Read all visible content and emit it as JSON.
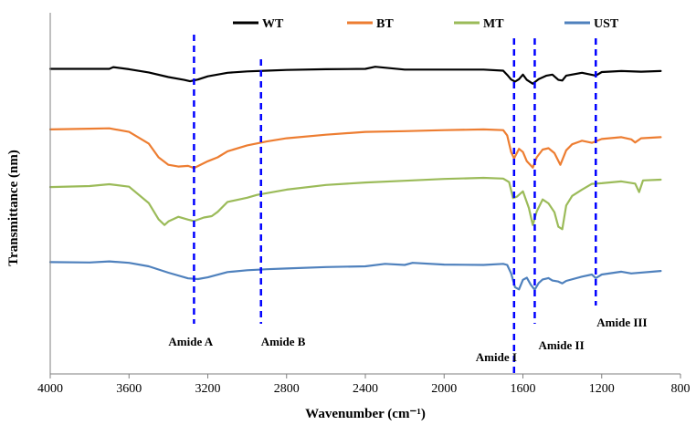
{
  "chart_data": {
    "type": "line",
    "xlabel": "Wavenumber (cm⁻¹)",
    "ylabel": "Transmittance (nm)",
    "xlim": [
      4000,
      800
    ],
    "x_reversed": true,
    "x_ticks": [
      4000,
      3600,
      3200,
      2800,
      2400,
      2000,
      1600,
      1200,
      800
    ],
    "y_ticks_shown": false,
    "ylim": [
      0,
      100
    ],
    "grid": false,
    "legend_position": "top",
    "series": [
      {
        "name": "WT",
        "color": "#000000",
        "x": [
          4000,
          3700,
          3680,
          3600,
          3500,
          3400,
          3320,
          3290,
          3250,
          3200,
          3100,
          3000,
          2900,
          2800,
          2600,
          2400,
          2350,
          2200,
          2000,
          1800,
          1700,
          1680,
          1660,
          1640,
          1620,
          1600,
          1580,
          1550,
          1520,
          1480,
          1450,
          1420,
          1400,
          1380,
          1300,
          1230,
          1200,
          1100,
          1000,
          900
        ],
        "values": [
          86.2,
          86.2,
          86.7,
          86.1,
          85.2,
          83.9,
          83.1,
          82.7,
          83.2,
          84.1,
          85.1,
          85.5,
          85.7,
          85.9,
          86.1,
          86.2,
          86.8,
          86.0,
          86.0,
          86.0,
          85.7,
          84.5,
          83.2,
          82.6,
          83.3,
          84.6,
          83.1,
          82.0,
          83.3,
          84.3,
          84.6,
          83.1,
          82.9,
          84.3,
          85.1,
          84.3,
          85.3,
          85.6,
          85.4,
          85.6
        ]
      },
      {
        "name": "BT",
        "color": "#ED7D31",
        "x": [
          4000,
          3800,
          3700,
          3600,
          3500,
          3450,
          3400,
          3350,
          3300,
          3270,
          3200,
          3150,
          3100,
          3000,
          2900,
          2800,
          2600,
          2400,
          2200,
          2000,
          1800,
          1700,
          1680,
          1660,
          1645,
          1620,
          1600,
          1580,
          1550,
          1530,
          1500,
          1470,
          1440,
          1410,
          1380,
          1350,
          1300,
          1250,
          1200,
          1100,
          1050,
          1030,
          1000,
          900
        ],
        "values": [
          69.1,
          69.3,
          69.4,
          68.4,
          65.1,
          61.2,
          59.1,
          58.6,
          58.8,
          58.2,
          60.1,
          61.2,
          62.9,
          64.6,
          65.7,
          66.6,
          67.6,
          68.4,
          68.6,
          68.9,
          69.1,
          68.9,
          67.4,
          62.7,
          60.9,
          63.6,
          62.7,
          60.1,
          58.3,
          61.2,
          63.4,
          63.8,
          62.4,
          59.1,
          63.2,
          64.9,
          65.9,
          65.3,
          66.4,
          66.9,
          66.3,
          65.4,
          66.6,
          66.9
        ]
      },
      {
        "name": "MT",
        "color": "#9BBB59",
        "x": [
          4000,
          3800,
          3700,
          3600,
          3500,
          3450,
          3420,
          3400,
          3350,
          3300,
          3270,
          3220,
          3180,
          3150,
          3100,
          3000,
          2950,
          2800,
          2600,
          2400,
          2200,
          2000,
          1800,
          1700,
          1670,
          1650,
          1630,
          1600,
          1570,
          1550,
          1530,
          1500,
          1470,
          1440,
          1420,
          1400,
          1380,
          1350,
          1300,
          1250,
          1200,
          1100,
          1030,
          1010,
          990,
          900
        ],
        "values": [
          52.8,
          53.1,
          53.6,
          52.9,
          48.3,
          43.7,
          42.1,
          43.1,
          44.4,
          43.6,
          43.2,
          44.2,
          44.6,
          45.8,
          48.6,
          49.8,
          50.6,
          52.1,
          53.4,
          54.1,
          54.6,
          55.1,
          55.4,
          55.2,
          54.2,
          49.7,
          50.1,
          51.6,
          46.9,
          42.1,
          45.9,
          49.3,
          48.2,
          45.7,
          41.6,
          40.9,
          47.6,
          50.3,
          52.1,
          53.7,
          53.9,
          54.4,
          53.8,
          51.4,
          54.7,
          54.9
        ]
      },
      {
        "name": "UST",
        "color": "#4F81BD",
        "x": [
          4000,
          3800,
          3700,
          3600,
          3500,
          3400,
          3300,
          3250,
          3200,
          3100,
          3000,
          2900,
          2800,
          2600,
          2400,
          2300,
          2200,
          2160,
          2000,
          1800,
          1700,
          1680,
          1660,
          1640,
          1620,
          1600,
          1580,
          1560,
          1540,
          1520,
          1500,
          1470,
          1450,
          1420,
          1400,
          1380,
          1300,
          1250,
          1230,
          1200,
          1100,
          1050,
          900
        ],
        "values": [
          31.6,
          31.5,
          31.8,
          31.4,
          30.4,
          28.6,
          27.0,
          26.8,
          27.3,
          28.8,
          29.3,
          29.6,
          29.8,
          30.2,
          30.4,
          31.1,
          30.8,
          31.4,
          30.9,
          30.8,
          31.1,
          30.8,
          28.4,
          24.5,
          23.9,
          26.6,
          27.2,
          25.2,
          23.8,
          25.7,
          26.7,
          27.1,
          26.4,
          26.1,
          25.6,
          26.3,
          27.5,
          28.1,
          27.1,
          28.1,
          28.9,
          28.4,
          29.1
        ]
      }
    ],
    "reference_lines": [
      {
        "label": "Amide A",
        "x": 3270
      },
      {
        "label": "Amide B",
        "x": 2930
      },
      {
        "label": "Amide I",
        "x": 1645
      },
      {
        "label": "Amide II",
        "x": 1540
      },
      {
        "label": "Amide III",
        "x": 1230
      }
    ],
    "reference_line_color": "#0000FF"
  }
}
